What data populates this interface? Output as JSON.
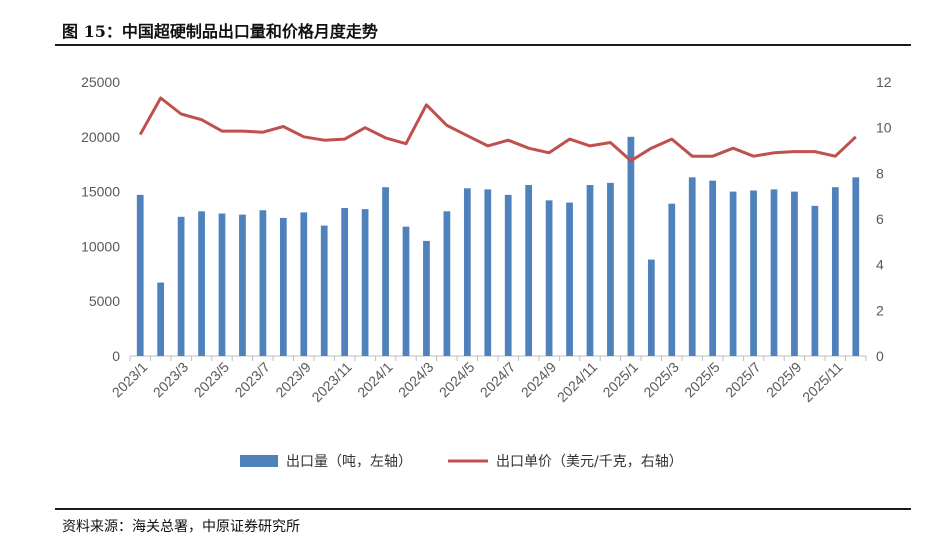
{
  "figure": {
    "title": "图 15：中国超硬制品出口量和价格月度走势",
    "source": "资料来源：海关总署，中原证券研究所"
  },
  "colors": {
    "bar": "#4F81BD",
    "line": "#C0504D",
    "axis": "#BFBFBF",
    "text": "#595959"
  },
  "chart_data": {
    "type": "bar+line",
    "title": "中国超硬制品出口量和价格月度走势",
    "categories": [
      "2023/1",
      "2023/2",
      "2023/3",
      "2023/4",
      "2023/5",
      "2023/6",
      "2023/7",
      "2023/8",
      "2023/9",
      "2023/10",
      "2023/11",
      "2023/12",
      "2024/1",
      "2024/2",
      "2024/3",
      "2024/4",
      "2024/5",
      "2024/6",
      "2024/7",
      "2024/8",
      "2024/9",
      "2024/10",
      "2024/11",
      "2024/12",
      "2025/1",
      "2025/2",
      "2025/3",
      "2025/4",
      "2025/5",
      "2025/6",
      "2025/7",
      "2025/8",
      "2025/9",
      "2025/10",
      "2025/11",
      "2025/12"
    ],
    "x_tick_labels": [
      "2023/1",
      "2023/3",
      "2023/5",
      "2023/7",
      "2023/9",
      "2023/11",
      "2024/1",
      "2024/3",
      "2024/5",
      "2024/7",
      "2024/9",
      "2024/11",
      "2025/1",
      "2025/3",
      "2025/5",
      "2025/7",
      "2025/9",
      "2025/11"
    ],
    "series": [
      {
        "name": "出口量（吨，左轴）",
        "type": "bar",
        "axis": "left",
        "values": [
          14700,
          6700,
          12700,
          13200,
          13000,
          12900,
          13300,
          12600,
          13100,
          11900,
          13500,
          13400,
          15400,
          11800,
          10500,
          13200,
          15300,
          15200,
          14700,
          15600,
          14200,
          14000,
          15600,
          15800,
          20000,
          8800,
          13900,
          16300,
          16000,
          15000,
          15100,
          15200,
          15000,
          13700,
          15400,
          16300
        ]
      },
      {
        "name": "出口单价（美元/千克，右轴）",
        "type": "line",
        "axis": "right",
        "values": [
          9.7,
          11.3,
          10.6,
          10.35,
          9.85,
          9.85,
          9.8,
          10.05,
          9.6,
          9.45,
          9.5,
          10.0,
          9.55,
          9.3,
          11.0,
          10.1,
          9.65,
          9.2,
          9.45,
          9.1,
          8.9,
          9.5,
          9.2,
          9.35,
          8.55,
          9.1,
          9.5,
          8.75,
          8.75,
          9.1,
          8.75,
          8.9,
          8.95,
          8.95,
          8.75,
          9.6
        ]
      }
    ],
    "y_left": {
      "min": 0,
      "max": 25000,
      "ticks": [
        "0",
        "5000",
        "10000",
        "15000",
        "20000",
        "25000"
      ]
    },
    "y_right": {
      "min": 0,
      "max": 12,
      "ticks": [
        "0",
        "2",
        "4",
        "6",
        "8",
        "10",
        "12"
      ]
    },
    "legend_position": "bottom",
    "grid": false
  }
}
